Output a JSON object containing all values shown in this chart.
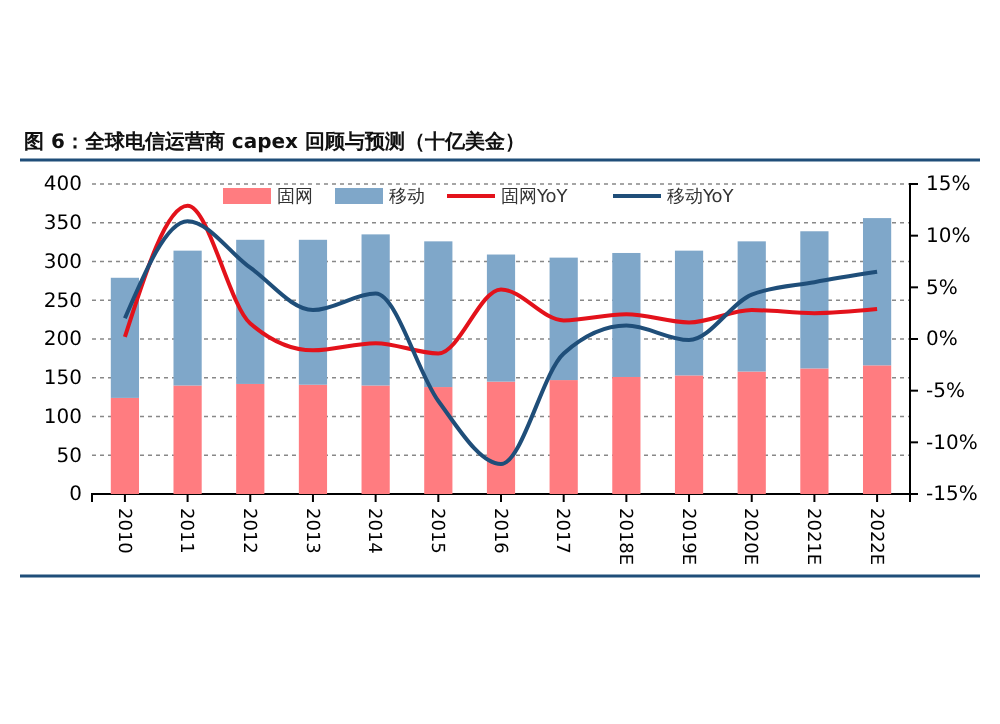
{
  "chart_data": {
    "type": "bar",
    "title": "图 6：全球电信运营商 capex 回顾与预测（十亿美金）",
    "categories": [
      "2010",
      "2011",
      "2012",
      "2013",
      "2014",
      "2015",
      "2016",
      "2017",
      "2018E",
      "2019E",
      "2020E",
      "2021E",
      "2022E"
    ],
    "stacked": true,
    "legend": "top",
    "grid": "y",
    "line_style": "solid",
    "marker": "none",
    "ylim": [
      0,
      400
    ],
    "yticks": [
      0,
      50,
      100,
      150,
      200,
      250,
      300,
      350,
      400
    ],
    "y2lim": [
      -15,
      15
    ],
    "y2ticks": [
      {
        "value": -15,
        "label": "-15%"
      },
      {
        "value": -10,
        "label": "-10%"
      },
      {
        "value": -5,
        "label": "-5%"
      },
      {
        "value": 0,
        "label": "0%"
      },
      {
        "value": 5,
        "label": "5%"
      },
      {
        "value": 10,
        "label": "10%"
      },
      {
        "value": 15,
        "label": "15%"
      }
    ],
    "series": [
      {
        "name": "固网",
        "color": "#ff7c80",
        "values": [
          124,
          140,
          142,
          141,
          140,
          138,
          145,
          147,
          151,
          153,
          158,
          162,
          166
        ]
      },
      {
        "name": "移动",
        "color": "#7fa7c9",
        "values": [
          155,
          174,
          186,
          187,
          195,
          188,
          164,
          158,
          160,
          161,
          168,
          177,
          190
        ]
      },
      {
        "name": "固网YoY",
        "type": "line",
        "axis": "y2",
        "color": "#e3121b",
        "values": [
          0.2,
          12.9,
          1.5,
          -1.1,
          -0.4,
          -1.4,
          4.8,
          1.8,
          2.4,
          1.6,
          2.8,
          2.5,
          2.9
        ]
      },
      {
        "name": "移动YoY",
        "type": "line",
        "axis": "y2",
        "color": "#1f4e79",
        "values": [
          2,
          11.4,
          6.9,
          2.8,
          4.4,
          -6,
          -12.1,
          -1.4,
          1.3,
          -0.1,
          4.3,
          5.5,
          6.5
        ]
      }
    ]
  }
}
